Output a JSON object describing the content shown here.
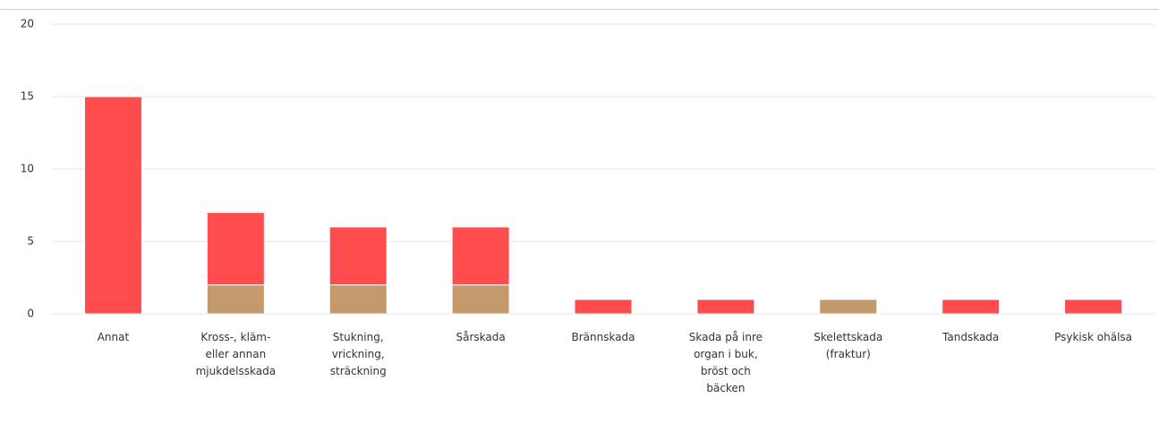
{
  "chart_data": {
    "type": "stacked_bar",
    "categories": [
      "Annat",
      "Kross-, kläm- eller annan mjukdelsskada",
      "Stukning, vrickning, sträckning",
      "Sårskada",
      "Brännskada",
      "Skada på inre organ i buk, bröst och bäcken",
      "Skelettskada (fraktur)",
      "Tandskada",
      "Psykisk ohälsa"
    ],
    "series": [
      {
        "color": "#c49a6c",
        "values": [
          0,
          2,
          2,
          2,
          0,
          0,
          1,
          0,
          0
        ]
      },
      {
        "color": "#ff4d4f",
        "values": [
          15,
          5,
          4,
          4,
          1,
          1,
          0,
          1,
          1
        ]
      }
    ],
    "ylim": [
      0,
      20
    ],
    "yticks": [
      0,
      5,
      10,
      15,
      20
    ],
    "grid": true
  }
}
